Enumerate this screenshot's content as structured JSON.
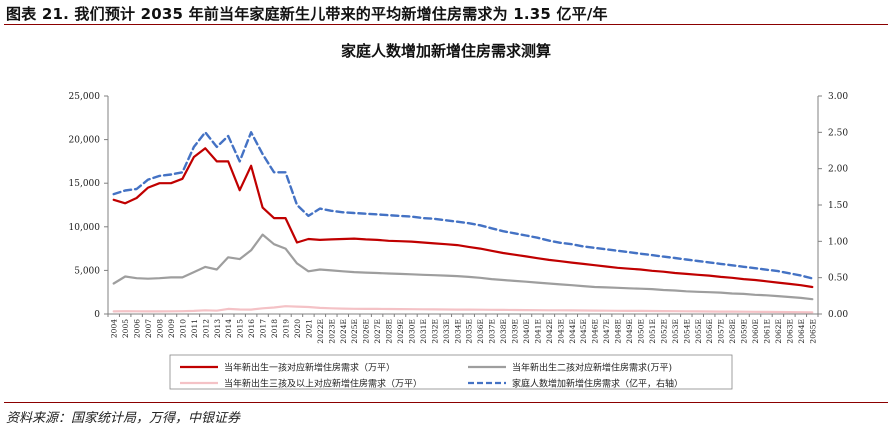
{
  "figure_title": "图表 21. 我们预计 2035 年前当年家庭新生儿带来的平均新增住房需求为 1.35 亿平/年",
  "source": "资料来源：国家统计局，万得，中银证券",
  "chart_data": {
    "type": "line",
    "title": "家庭人数增加新增住房需求测算",
    "categories": [
      "2004",
      "2005",
      "2006",
      "2007",
      "2008",
      "2009",
      "2010",
      "2011",
      "2012",
      "2013",
      "2014",
      "2015",
      "2016",
      "2017",
      "2018",
      "2019",
      "2020",
      "2021",
      "2022E",
      "2023E",
      "2024E",
      "2025E",
      "2026E",
      "2027E",
      "2028E",
      "2029E",
      "2030E",
      "2031E",
      "2032E",
      "2033E",
      "2034E",
      "2035E",
      "2036E",
      "2037E",
      "2038E",
      "2039E",
      "2040E",
      "2041E",
      "2042E",
      "2043E",
      "2044E",
      "2045E",
      "2046E",
      "2047E",
      "2048E",
      "2049E",
      "2050E",
      "2051E",
      "2052E",
      "2053E",
      "2054E",
      "2055E",
      "2056E",
      "2057E",
      "2058E",
      "2059E",
      "2060E",
      "2061E",
      "2062E",
      "2063E",
      "2064E",
      "2065E"
    ],
    "left_axis": {
      "ylim": [
        0,
        25000
      ],
      "ticks": [
        "0",
        "5,000",
        "10,000",
        "15,000",
        "20,000",
        "25,000"
      ]
    },
    "right_axis": {
      "ylim": [
        0,
        3
      ],
      "ticks": [
        "0.00",
        "0.50",
        "1.00",
        "1.50",
        "2.00",
        "2.50",
        "3.00"
      ]
    },
    "series": [
      {
        "name": "当年新出生一孩对应新增住房需求（万平）",
        "axis": "left",
        "color": "#c00000",
        "style": "solid",
        "values": [
          13100,
          12700,
          13300,
          14500,
          15000,
          15000,
          15500,
          18000,
          19000,
          17500,
          17500,
          14200,
          17000,
          12200,
          11000,
          11000,
          8200,
          8600,
          8500,
          8550,
          8600,
          8650,
          8550,
          8500,
          8400,
          8350,
          8300,
          8200,
          8100,
          8000,
          7900,
          7700,
          7500,
          7250,
          7000,
          6800,
          6600,
          6400,
          6200,
          6050,
          5900,
          5750,
          5600,
          5450,
          5300,
          5200,
          5100,
          4950,
          4850,
          4700,
          4600,
          4500,
          4400,
          4250,
          4150,
          4000,
          3900,
          3750,
          3600,
          3450,
          3300,
          3100
        ]
      },
      {
        "name": "当年新出生二孩对应新增住房需求(万平)",
        "axis": "left",
        "color": "#9e9e9e",
        "style": "solid",
        "values": [
          3500,
          4300,
          4100,
          4050,
          4100,
          4200,
          4200,
          4800,
          5400,
          5100,
          6500,
          6300,
          7300,
          9100,
          8000,
          7500,
          5800,
          4900,
          5100,
          5000,
          4900,
          4800,
          4750,
          4700,
          4650,
          4600,
          4550,
          4500,
          4450,
          4400,
          4350,
          4250,
          4150,
          4000,
          3900,
          3800,
          3700,
          3600,
          3500,
          3400,
          3300,
          3200,
          3100,
          3050,
          3000,
          2950,
          2900,
          2850,
          2750,
          2700,
          2600,
          2550,
          2500,
          2450,
          2350,
          2300,
          2200,
          2150,
          2050,
          1950,
          1850,
          1700
        ]
      },
      {
        "name": "当年新出生三孩及以上对应新增住房需求（万平）",
        "axis": "left",
        "color": "#f4c2c6",
        "style": "solid",
        "values": [
          300,
          320,
          310,
          300,
          300,
          310,
          320,
          350,
          420,
          380,
          580,
          520,
          500,
          650,
          750,
          900,
          850,
          800,
          700,
          650,
          620,
          600,
          590,
          580,
          570,
          560,
          550,
          540,
          530,
          520,
          510,
          500,
          490,
          480,
          470,
          460,
          450,
          440,
          430,
          420,
          410,
          400,
          390,
          380,
          370,
          360,
          350,
          340,
          330,
          320,
          310,
          300,
          290,
          280,
          270,
          260,
          250,
          240,
          230,
          220,
          210,
          200
        ]
      },
      {
        "name": "家庭人数增加新增住房需求（亿平，右轴）",
        "axis": "right",
        "color": "#4472c4",
        "style": "dashed",
        "values": [
          1.65,
          1.7,
          1.72,
          1.85,
          1.9,
          1.92,
          1.95,
          2.3,
          2.5,
          2.3,
          2.45,
          2.1,
          2.5,
          2.2,
          1.95,
          1.95,
          1.5,
          1.35,
          1.45,
          1.42,
          1.4,
          1.39,
          1.38,
          1.37,
          1.36,
          1.35,
          1.34,
          1.32,
          1.31,
          1.29,
          1.27,
          1.25,
          1.22,
          1.18,
          1.14,
          1.11,
          1.08,
          1.05,
          1.01,
          0.98,
          0.96,
          0.93,
          0.91,
          0.89,
          0.87,
          0.85,
          0.83,
          0.81,
          0.79,
          0.77,
          0.75,
          0.73,
          0.71,
          0.69,
          0.67,
          0.65,
          0.63,
          0.61,
          0.59,
          0.56,
          0.53,
          0.49
        ]
      }
    ],
    "legend": [
      {
        "label": "当年新出生一孩对应新增住房需求（万平）",
        "color": "#c00000",
        "style": "solid"
      },
      {
        "label": "当年新出生二孩对应新增住房需求(万平)",
        "color": "#9e9e9e",
        "style": "solid"
      },
      {
        "label": "当年新出生三孩及以上对应新增住房需求（万平）",
        "color": "#f4c2c6",
        "style": "solid"
      },
      {
        "label": "家庭人数增加新增住房需求（亿平，右轴）",
        "color": "#4472c4",
        "style": "dashed"
      }
    ],
    "legend_placement": "bottom",
    "grid": false
  }
}
